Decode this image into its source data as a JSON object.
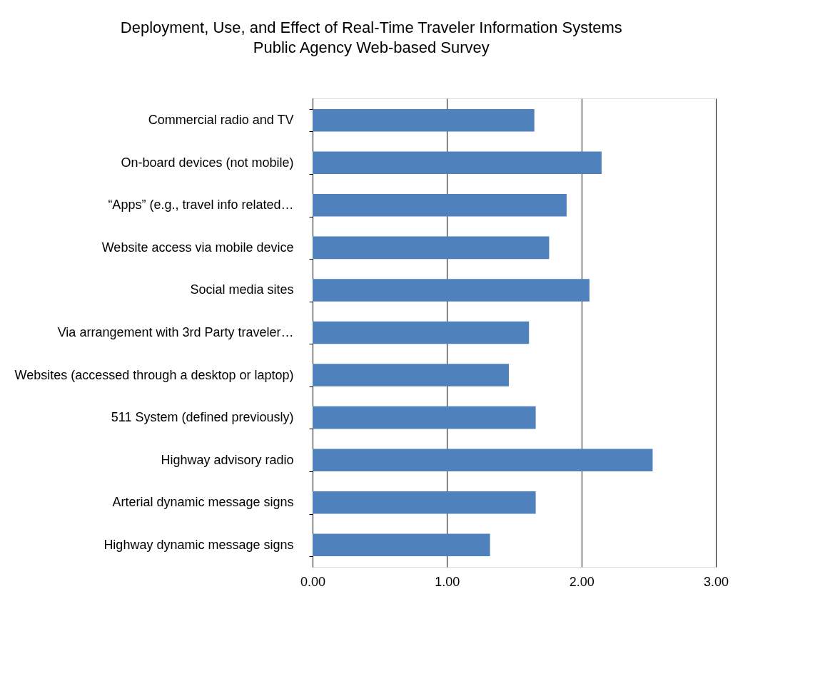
{
  "chart_data": {
    "type": "bar",
    "orientation": "horizontal",
    "title": "Deployment, Use, and Effect of Real-Time Traveler Information Systems",
    "subtitle": "Public Agency Web-based Survey",
    "categories": [
      "Commercial radio and TV",
      "On-board devices (not mobile)",
      "“Apps” (e.g., travel info related…",
      "Website access via mobile device",
      "Social media sites",
      "Via arrangement with 3rd Party traveler…",
      "Websites (accessed through a desktop or laptop)",
      "511 System (defined previously)",
      "Highway advisory radio",
      "Arterial dynamic message signs",
      "Highway dynamic message signs"
    ],
    "values": [
      1.65,
      2.15,
      1.89,
      1.76,
      2.06,
      1.61,
      1.46,
      1.66,
      2.53,
      1.66,
      1.32
    ],
    "color": "#4f81bd",
    "xlim": [
      0,
      3
    ],
    "xticks": [
      {
        "value": 0,
        "label": "0.00"
      },
      {
        "value": 1,
        "label": "1.00"
      },
      {
        "value": 2,
        "label": "2.00"
      },
      {
        "value": 3,
        "label": "3.00"
      }
    ],
    "grid": "x"
  }
}
